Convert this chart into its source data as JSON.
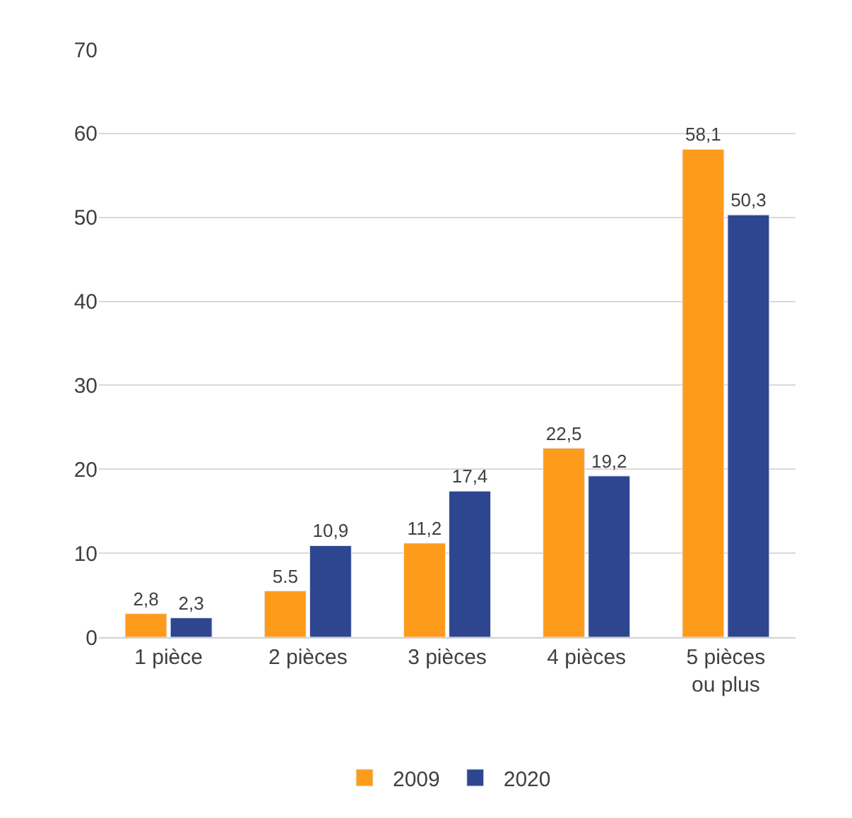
{
  "chart_data": {
    "type": "bar",
    "categories": [
      "1 pièce",
      "2 pièces",
      "3 pièces",
      "4 pièces",
      "5 pièces\nou plus"
    ],
    "series": [
      {
        "name": "2009",
        "color": "#ff9b1a",
        "values": [
          2.8,
          5.5,
          11.2,
          22.5,
          58.1
        ],
        "value_labels": [
          "2,8",
          "5.5",
          "11,2",
          "22,5",
          "58,1"
        ]
      },
      {
        "name": "2020",
        "color": "#2e4590",
        "values": [
          2.3,
          10.9,
          17.4,
          19.2,
          50.3
        ],
        "value_labels": [
          "2,3",
          "10,9",
          "17,4",
          "19,2",
          "50,3"
        ]
      }
    ],
    "ylim": [
      0,
      70
    ],
    "yticks": [
      0,
      10,
      20,
      30,
      40,
      50,
      60,
      70
    ],
    "grid": "y",
    "legend": "bottom"
  }
}
